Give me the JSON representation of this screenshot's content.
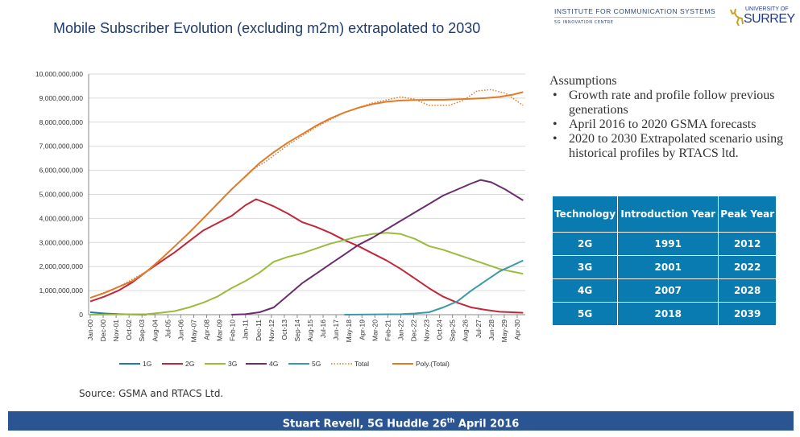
{
  "header": {
    "title": "Mobile Subscriber Evolution (excluding m2m) extrapolated to 2030",
    "institute": "INSTITUTE FOR COMMUNICATION SYSTEMS",
    "institute_sub": "5G INNOVATION CENTRE",
    "university_line1": "UNIVERSITY OF",
    "university_line2": "SURREY"
  },
  "assumptions": {
    "heading": "Assumptions",
    "items": [
      "Growth rate and profile follow previous generations",
      "April 2016 to 2020 GSMA forecasts",
      "2020 to 2030 Extrapolated scenario using historical profiles by RTACS ltd."
    ]
  },
  "table": {
    "headers": [
      "Technology",
      "Introduction Year",
      "Peak Year"
    ],
    "rows": [
      [
        "2G",
        "1991",
        "2012"
      ],
      [
        "3G",
        "2001",
        "2022"
      ],
      [
        "4G",
        "2007",
        "2028"
      ],
      [
        "5G",
        "2018",
        "2039"
      ]
    ]
  },
  "source": "Source: GSMA and RTACS Ltd.",
  "footer": {
    "text": "Stuart Revell, 5G Huddle 26",
    "sup": "th",
    "tail": " April 2016"
  },
  "chart_data": {
    "type": "line",
    "ylim": [
      0,
      10000000000
    ],
    "yticks": [
      "0",
      "1,000,000,000",
      "2,000,000,000",
      "3,000,000,000",
      "4,000,000,000",
      "5,000,000,000",
      "6,000,000,000",
      "7,000,000,000",
      "8,000,000,000",
      "9,000,000,000",
      "10,000,000,000"
    ],
    "xticks": [
      "Jan-00",
      "Dec-00",
      "Nov-01",
      "Oct-02",
      "Sep-03",
      "Aug-04",
      "Jul-05",
      "Jun-06",
      "May-07",
      "Apr-08",
      "Mar-09",
      "Feb-10",
      "Jan-11",
      "Dec-11",
      "Nov-12",
      "Oct-13",
      "Sep-14",
      "Aug-15",
      "Jul-16",
      "Jun-17",
      "May-18",
      "Apr-19",
      "Mar-20",
      "Feb-21",
      "Jan-22",
      "Dec-22",
      "Nov-23",
      "Oct-24",
      "Sep-25",
      "Aug-26",
      "Jul-27",
      "Jun-28",
      "May-29",
      "Apr-30"
    ],
    "grid": true,
    "legend": "bottom",
    "series": [
      {
        "name": "1G",
        "color": "#1f77b4",
        "style": "solid",
        "points": [
          [
            "2000-01",
            100000000
          ],
          [
            "2001-01",
            50000000
          ],
          [
            "2002-01",
            25000000
          ],
          [
            "2003-01",
            10000000
          ],
          [
            "2004-01",
            0
          ]
        ]
      },
      {
        "name": "2G",
        "color": "#c0283a",
        "style": "solid",
        "points": [
          [
            "2000-01",
            550000000
          ],
          [
            "2001-01",
            750000000
          ],
          [
            "2002-01",
            1000000000
          ],
          [
            "2003-01",
            1350000000
          ],
          [
            "2004-01",
            1800000000
          ],
          [
            "2005-01",
            2200000000
          ],
          [
            "2006-01",
            2600000000
          ],
          [
            "2007-01",
            3050000000
          ],
          [
            "2008-01",
            3500000000
          ],
          [
            "2009-01",
            3800000000
          ],
          [
            "2010-01",
            4100000000
          ],
          [
            "2011-01",
            4550000000
          ],
          [
            "2011-10",
            4800000000
          ],
          [
            "2012-06",
            4650000000
          ],
          [
            "2013-01",
            4500000000
          ],
          [
            "2014-01",
            4200000000
          ],
          [
            "2015-01",
            3850000000
          ],
          [
            "2016-01",
            3650000000
          ],
          [
            "2017-01",
            3400000000
          ],
          [
            "2018-01",
            3100000000
          ],
          [
            "2019-01",
            2850000000
          ],
          [
            "2020-01",
            2550000000
          ],
          [
            "2021-01",
            2250000000
          ],
          [
            "2022-01",
            1900000000
          ],
          [
            "2023-01",
            1500000000
          ],
          [
            "2024-01",
            1100000000
          ],
          [
            "2025-01",
            750000000
          ],
          [
            "2026-01",
            500000000
          ],
          [
            "2027-01",
            300000000
          ],
          [
            "2028-01",
            200000000
          ],
          [
            "2029-01",
            120000000
          ],
          [
            "2030-09",
            80000000
          ]
        ]
      },
      {
        "name": "3G",
        "color": "#9bbb3b",
        "style": "solid",
        "points": [
          [
            "2000-01",
            0
          ],
          [
            "2004-01",
            20000000
          ],
          [
            "2005-01",
            80000000
          ],
          [
            "2006-01",
            150000000
          ],
          [
            "2007-01",
            300000000
          ],
          [
            "2008-01",
            500000000
          ],
          [
            "2009-01",
            750000000
          ],
          [
            "2010-01",
            1100000000
          ],
          [
            "2011-01",
            1400000000
          ],
          [
            "2012-01",
            1750000000
          ],
          [
            "2013-01",
            2200000000
          ],
          [
            "2014-01",
            2400000000
          ],
          [
            "2015-01",
            2550000000
          ],
          [
            "2016-01",
            2750000000
          ],
          [
            "2017-01",
            2950000000
          ],
          [
            "2018-01",
            3100000000
          ],
          [
            "2019-01",
            3250000000
          ],
          [
            "2020-01",
            3350000000
          ],
          [
            "2021-01",
            3400000000
          ],
          [
            "2022-01",
            3350000000
          ],
          [
            "2023-01",
            3150000000
          ],
          [
            "2024-01",
            2850000000
          ],
          [
            "2025-01",
            2700000000
          ],
          [
            "2026-01",
            2500000000
          ],
          [
            "2027-01",
            2300000000
          ],
          [
            "2028-01",
            2100000000
          ],
          [
            "2029-01",
            1900000000
          ],
          [
            "2030-09",
            1700000000
          ]
        ]
      },
      {
        "name": "4G",
        "color": "#6b2d6e",
        "style": "solid",
        "points": [
          [
            "2010-01",
            0
          ],
          [
            "2011-01",
            20000000
          ],
          [
            "2012-01",
            100000000
          ],
          [
            "2013-01",
            300000000
          ],
          [
            "2014-01",
            800000000
          ],
          [
            "2015-01",
            1300000000
          ],
          [
            "2016-01",
            1700000000
          ],
          [
            "2017-01",
            2100000000
          ],
          [
            "2018-01",
            2500000000
          ],
          [
            "2019-01",
            2900000000
          ],
          [
            "2020-01",
            3200000000
          ],
          [
            "2021-01",
            3550000000
          ],
          [
            "2022-01",
            3900000000
          ],
          [
            "2023-01",
            4250000000
          ],
          [
            "2024-01",
            4600000000
          ],
          [
            "2025-01",
            4950000000
          ],
          [
            "2026-01",
            5200000000
          ],
          [
            "2027-01",
            5450000000
          ],
          [
            "2027-09",
            5600000000
          ],
          [
            "2028-06",
            5500000000
          ],
          [
            "2029-06",
            5200000000
          ],
          [
            "2030-09",
            4750000000
          ]
        ]
      },
      {
        "name": "5G",
        "color": "#3a9aa8",
        "style": "solid",
        "points": [
          [
            "2018-01",
            0
          ],
          [
            "2022-01",
            20000000
          ],
          [
            "2023-01",
            50000000
          ],
          [
            "2024-01",
            100000000
          ],
          [
            "2025-01",
            300000000
          ],
          [
            "2026-01",
            550000000
          ],
          [
            "2027-01",
            1000000000
          ],
          [
            "2028-01",
            1400000000
          ],
          [
            "2029-01",
            1800000000
          ],
          [
            "2030-09",
            2250000000
          ]
        ]
      },
      {
        "name": "Total",
        "color": "#e07b2a",
        "style": "dotted",
        "points": [
          [
            "2000-01",
            700000000
          ],
          [
            "2002-01",
            1150000000
          ],
          [
            "2004-01",
            1800000000
          ],
          [
            "2006-01",
            2850000000
          ],
          [
            "2008-01",
            4000000000
          ],
          [
            "2010-01",
            5200000000
          ],
          [
            "2011-06",
            6000000000
          ],
          [
            "2012-06",
            6350000000
          ],
          [
            "2014-01",
            7050000000
          ],
          [
            "2016-01",
            7800000000
          ],
          [
            "2018-01",
            8400000000
          ],
          [
            "2020-01",
            8800000000
          ],
          [
            "2022-01",
            9050000000
          ],
          [
            "2023-01",
            8950000000
          ],
          [
            "2024-01",
            8700000000
          ],
          [
            "2025-06",
            8700000000
          ],
          [
            "2026-06",
            8900000000
          ],
          [
            "2027-06",
            9300000000
          ],
          [
            "2028-06",
            9350000000
          ],
          [
            "2029-06",
            9200000000
          ],
          [
            "2030-09",
            8700000000
          ]
        ]
      },
      {
        "name": "Poly.(Total)",
        "color": "#e07b2a",
        "style": "solid",
        "points": [
          [
            "2000-01",
            700000000
          ],
          [
            "2001-01",
            900000000
          ],
          [
            "2002-01",
            1150000000
          ],
          [
            "2003-01",
            1400000000
          ],
          [
            "2004-01",
            1800000000
          ],
          [
            "2005-01",
            2300000000
          ],
          [
            "2006-01",
            2850000000
          ],
          [
            "2007-01",
            3400000000
          ],
          [
            "2008-01",
            4000000000
          ],
          [
            "2009-01",
            4600000000
          ],
          [
            "2010-01",
            5200000000
          ],
          [
            "2011-01",
            5750000000
          ],
          [
            "2012-01",
            6300000000
          ],
          [
            "2013-01",
            6750000000
          ],
          [
            "2014-01",
            7150000000
          ],
          [
            "2015-01",
            7500000000
          ],
          [
            "2016-01",
            7850000000
          ],
          [
            "2017-01",
            8150000000
          ],
          [
            "2018-01",
            8400000000
          ],
          [
            "2019-01",
            8600000000
          ],
          [
            "2020-01",
            8750000000
          ],
          [
            "2021-01",
            8850000000
          ],
          [
            "2022-01",
            8900000000
          ],
          [
            "2023-01",
            8920000000
          ],
          [
            "2024-01",
            8930000000
          ],
          [
            "2025-01",
            8930000000
          ],
          [
            "2026-01",
            8950000000
          ],
          [
            "2027-01",
            8970000000
          ],
          [
            "2028-01",
            9000000000
          ],
          [
            "2029-01",
            9050000000
          ],
          [
            "2030-01",
            9150000000
          ],
          [
            "2030-09",
            9250000000
          ]
        ]
      }
    ]
  }
}
